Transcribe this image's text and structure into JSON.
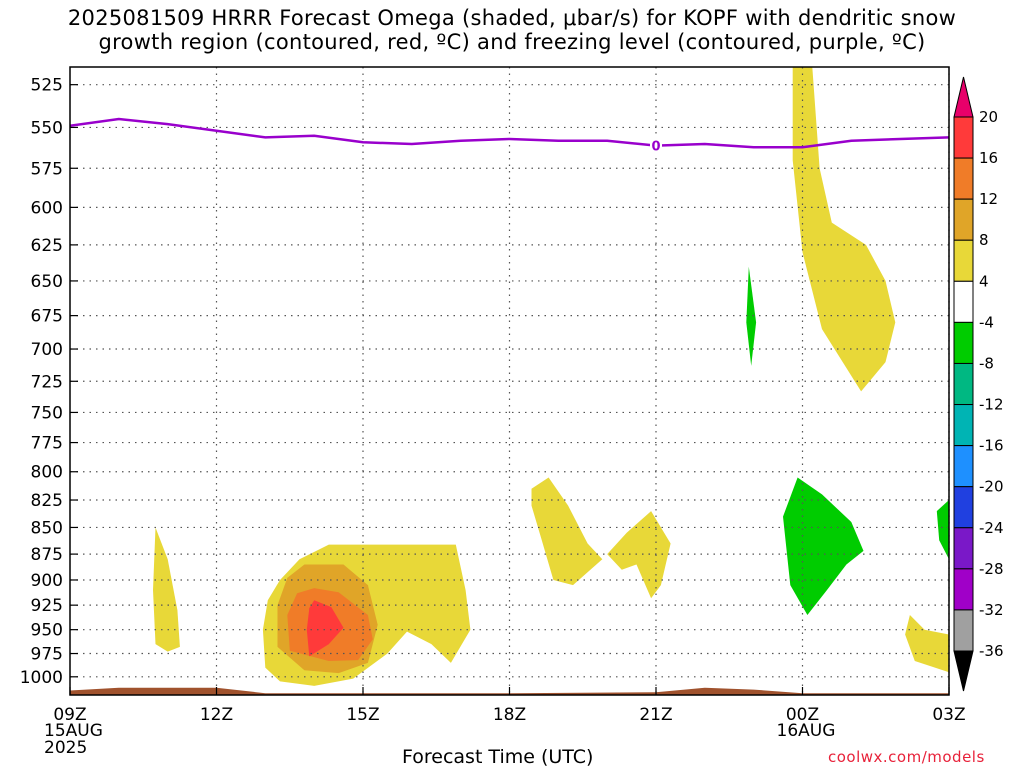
{
  "title": {
    "line1": "2025081509 HRRR Forecast Omega (shaded, μbar/s) for KOPF with dendritic snow",
    "line2": "growth region (contoured, red, ºC) and freezing level (contoured, purple, ºC)"
  },
  "credit": "coolwx.com/models",
  "chart_data": {
    "type": "heatmap",
    "title": "2025081509 HRRR Forecast Omega (shaded, μbar/s) for KOPF with dendritic snow growth region (contoured, red, ºC) and freezing level (contoured, purple, ºC)",
    "xlabel": "Forecast Time (UTC)",
    "ylabel": "",
    "x_range_hours": [
      9,
      27
    ],
    "y_range_hpa": [
      1020,
      515
    ],
    "y_scale": "log-pressure (inverted)",
    "grid": "on (dotted)",
    "legend": "colorbar on right",
    "x_ticks": [
      {
        "hour": 9,
        "label": "09Z",
        "sub": [
          "15AUG",
          "2025"
        ]
      },
      {
        "hour": 12,
        "label": "12Z",
        "sub": []
      },
      {
        "hour": 15,
        "label": "15Z",
        "sub": []
      },
      {
        "hour": 18,
        "label": "18Z",
        "sub": []
      },
      {
        "hour": 21,
        "label": "21Z",
        "sub": []
      },
      {
        "hour": 24,
        "label": "00Z",
        "sub": [
          "16AUG"
        ]
      },
      {
        "hour": 27,
        "label": "03Z",
        "sub": []
      }
    ],
    "y_ticks": [
      525,
      550,
      575,
      600,
      625,
      650,
      675,
      700,
      725,
      750,
      775,
      800,
      825,
      850,
      875,
      900,
      925,
      950,
      975,
      1000
    ],
    "colorbar": {
      "labels": [
        "20",
        "16",
        "12",
        "8",
        "4",
        "-4",
        "-8",
        "-12",
        "-16",
        "-20",
        "-24",
        "-28",
        "-32",
        "-36"
      ],
      "colors": [
        "#e8006a",
        "#ff3a3a",
        "#f07c28",
        "#e0a528",
        "#e8d838",
        "#ffffff",
        "#00cc00",
        "#00b882",
        "#00b4b4",
        "#1e90ff",
        "#2040e0",
        "#7a18c8",
        "#a000c8",
        "#a0a0a0",
        "#000000"
      ]
    },
    "freezing_level": {
      "label": "0",
      "color": "#9900cc",
      "points": [
        [
          9,
          549
        ],
        [
          10,
          545
        ],
        [
          11,
          548
        ],
        [
          12,
          552
        ],
        [
          13,
          556
        ],
        [
          14,
          555
        ],
        [
          15,
          559
        ],
        [
          16,
          560
        ],
        [
          17,
          558
        ],
        [
          18,
          557
        ],
        [
          19,
          558
        ],
        [
          20,
          558
        ],
        [
          21,
          561
        ],
        [
          22,
          560
        ],
        [
          23,
          562
        ],
        [
          24,
          562
        ],
        [
          25,
          558
        ],
        [
          26,
          557
        ],
        [
          27,
          556
        ]
      ]
    },
    "omega_regions": [
      {
        "value": 4,
        "color": "#e8d838",
        "points": [
          [
            10.75,
            850
          ],
          [
            11.0,
            880
          ],
          [
            11.2,
            930
          ],
          [
            11.25,
            968
          ],
          [
            11.0,
            973
          ],
          [
            10.75,
            965
          ],
          [
            10.7,
            910
          ]
        ]
      },
      {
        "value": 4,
        "color": "#e8d838",
        "points": [
          [
            13.3,
            900
          ],
          [
            13.7,
            880
          ],
          [
            14.3,
            866
          ],
          [
            14.8,
            866
          ],
          [
            15.6,
            866
          ],
          [
            16.9,
            866
          ],
          [
            17.1,
            910
          ],
          [
            17.2,
            950
          ],
          [
            16.8,
            985
          ],
          [
            16.4,
            965
          ],
          [
            15.9,
            952
          ],
          [
            15.5,
            975
          ],
          [
            14.8,
            1002
          ],
          [
            14.0,
            1010
          ],
          [
            13.3,
            1005
          ],
          [
            13.0,
            990
          ],
          [
            12.95,
            950
          ],
          [
            13.05,
            920
          ]
        ]
      },
      {
        "value": 8,
        "color": "#e0a528",
        "points": [
          [
            13.8,
            885
          ],
          [
            14.6,
            885
          ],
          [
            15.1,
            905
          ],
          [
            15.3,
            945
          ],
          [
            15.1,
            985
          ],
          [
            14.5,
            996
          ],
          [
            13.8,
            993
          ],
          [
            13.25,
            968
          ],
          [
            13.25,
            925
          ],
          [
            13.45,
            898
          ]
        ]
      },
      {
        "value": 12,
        "color": "#f07c28",
        "points": [
          [
            14.0,
            908
          ],
          [
            14.5,
            912
          ],
          [
            15.1,
            935
          ],
          [
            15.2,
            960
          ],
          [
            14.9,
            982
          ],
          [
            14.3,
            983
          ],
          [
            13.5,
            972
          ],
          [
            13.45,
            935
          ],
          [
            13.65,
            913
          ]
        ]
      },
      {
        "value": 16,
        "color": "#ff3a3a",
        "points": [
          [
            14.0,
            920
          ],
          [
            14.35,
            927
          ],
          [
            14.6,
            948
          ],
          [
            14.3,
            965
          ],
          [
            13.9,
            978
          ],
          [
            13.85,
            950
          ],
          [
            13.9,
            928
          ]
        ]
      },
      {
        "value": 4,
        "color": "#e8d838",
        "points": [
          [
            18.45,
            815
          ],
          [
            18.8,
            805
          ],
          [
            19.2,
            830
          ],
          [
            19.6,
            865
          ],
          [
            19.9,
            880
          ],
          [
            19.3,
            905
          ],
          [
            18.9,
            900
          ],
          [
            18.65,
            860
          ],
          [
            18.45,
            830
          ]
        ]
      },
      {
        "value": 4,
        "color": "#e8d838",
        "points": [
          [
            20.0,
            875
          ],
          [
            20.4,
            855
          ],
          [
            20.9,
            835
          ],
          [
            21.3,
            865
          ],
          [
            21.1,
            905
          ],
          [
            20.9,
            918
          ],
          [
            20.6,
            885
          ],
          [
            20.3,
            890
          ]
        ]
      },
      {
        "value": 4,
        "color": "#e8d838",
        "points": [
          [
            23.8,
            515
          ],
          [
            24.2,
            515
          ],
          [
            24.35,
            575
          ],
          [
            24.6,
            610
          ],
          [
            25.3,
            625
          ],
          [
            25.7,
            650
          ],
          [
            25.9,
            680
          ],
          [
            25.7,
            710
          ],
          [
            25.2,
            733
          ],
          [
            24.4,
            685
          ],
          [
            24.0,
            630
          ],
          [
            23.8,
            570
          ]
        ]
      },
      {
        "value": 4,
        "color": "#e8d838",
        "points": [
          [
            26.2,
            935
          ],
          [
            26.5,
            950
          ],
          [
            27.0,
            955
          ],
          [
            27.0,
            995
          ],
          [
            26.3,
            983
          ],
          [
            26.1,
            955
          ]
        ]
      },
      {
        "value": -4,
        "color": "#00cc00",
        "points": [
          [
            22.9,
            640
          ],
          [
            23.05,
            680
          ],
          [
            22.95,
            713
          ],
          [
            22.85,
            680
          ]
        ]
      },
      {
        "value": -4,
        "color": "#00cc00",
        "points": [
          [
            23.9,
            805
          ],
          [
            24.4,
            820
          ],
          [
            25.0,
            845
          ],
          [
            25.25,
            872
          ],
          [
            24.9,
            885
          ],
          [
            24.5,
            910
          ],
          [
            24.1,
            935
          ],
          [
            23.75,
            905
          ],
          [
            23.6,
            840
          ]
        ]
      },
      {
        "value": -4,
        "color": "#00cc00",
        "points": [
          [
            26.75,
            835
          ],
          [
            27.0,
            825
          ],
          [
            27.0,
            880
          ],
          [
            26.8,
            862
          ]
        ]
      }
    ],
    "ground": {
      "color": "#a0522d",
      "points": [
        [
          9,
          1015
        ],
        [
          10,
          1012
        ],
        [
          12,
          1012
        ],
        [
          13,
          1018
        ],
        [
          18,
          1018
        ],
        [
          21,
          1017
        ],
        [
          22,
          1012
        ],
        [
          23,
          1014
        ],
        [
          24,
          1018
        ],
        [
          27,
          1018
        ]
      ]
    }
  }
}
